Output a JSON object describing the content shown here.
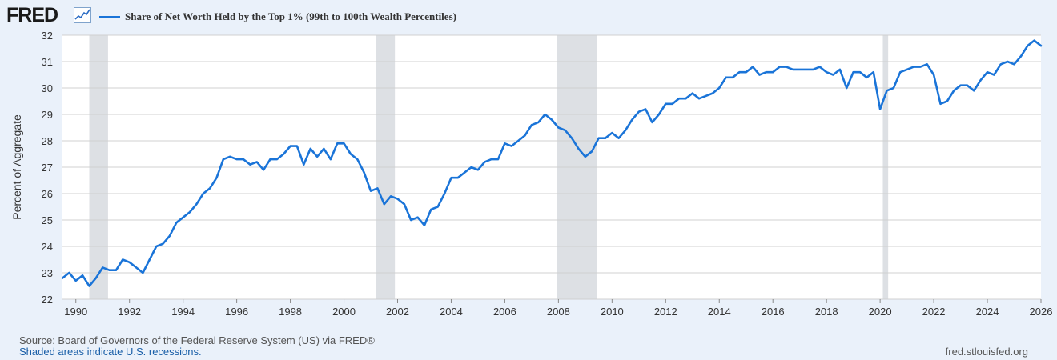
{
  "header": {
    "logo_text": "FRED",
    "logo_icon": "line-chart-icon"
  },
  "colors": {
    "series": "#1a74d8",
    "recession": "#dde0e4",
    "grid": "#d0d0d0",
    "background": "#eaf1fa",
    "plot_background": "#ffffff"
  },
  "footer": {
    "source": "Source: Board of Governors of the Federal Reserve System (US) via FRED®",
    "note": "Shaded areas indicate U.S. recessions.",
    "site": "fred.stlouisfed.org"
  },
  "chart_data": {
    "type": "line",
    "title": "",
    "ylabel": "Percent of Aggregate",
    "xlabel": "",
    "ylim": [
      22,
      32
    ],
    "xlim": [
      1989.5,
      2026.0
    ],
    "yticks": [
      22,
      23,
      24,
      25,
      26,
      27,
      28,
      29,
      30,
      31,
      32
    ],
    "xticks": [
      "1990",
      "1992",
      "1994",
      "1996",
      "1998",
      "2000",
      "2002",
      "2004",
      "2006",
      "2008",
      "2010",
      "2012",
      "2014",
      "2016",
      "2018",
      "2020",
      "2022",
      "2024",
      "2026"
    ],
    "grid": true,
    "legend_position": "top-left",
    "recessions": [
      [
        1990.5,
        1991.2
      ],
      [
        2001.2,
        2001.9
      ],
      [
        2007.95,
        2009.45
      ],
      [
        2020.1,
        2020.3
      ]
    ],
    "series": [
      {
        "name": "Share of Net Worth Held by the Top 1% (99th to 100th Wealth Percentiles)",
        "x": [
          1989.5,
          1989.75,
          1990.0,
          1990.25,
          1990.5,
          1990.75,
          1991.0,
          1991.25,
          1991.5,
          1991.75,
          1992.0,
          1992.25,
          1992.5,
          1992.75,
          1993.0,
          1993.25,
          1993.5,
          1993.75,
          1994.0,
          1994.25,
          1994.5,
          1994.75,
          1995.0,
          1995.25,
          1995.5,
          1995.75,
          1996.0,
          1996.25,
          1996.5,
          1996.75,
          1997.0,
          1997.25,
          1997.5,
          1997.75,
          1998.0,
          1998.25,
          1998.5,
          1998.75,
          1999.0,
          1999.25,
          1999.5,
          1999.75,
          2000.0,
          2000.25,
          2000.5,
          2000.75,
          2001.0,
          2001.25,
          2001.5,
          2001.75,
          2002.0,
          2002.25,
          2002.5,
          2002.75,
          2003.0,
          2003.25,
          2003.5,
          2003.75,
          2004.0,
          2004.25,
          2004.5,
          2004.75,
          2005.0,
          2005.25,
          2005.5,
          2005.75,
          2006.0,
          2006.25,
          2006.5,
          2006.75,
          2007.0,
          2007.25,
          2007.5,
          2007.75,
          2008.0,
          2008.25,
          2008.5,
          2008.75,
          2009.0,
          2009.25,
          2009.5,
          2009.75,
          2010.0,
          2010.25,
          2010.5,
          2010.75,
          2011.0,
          2011.25,
          2011.5,
          2011.75,
          2012.0,
          2012.25,
          2012.5,
          2012.75,
          2013.0,
          2013.25,
          2013.5,
          2013.75,
          2014.0,
          2014.25,
          2014.5,
          2014.75,
          2015.0,
          2015.25,
          2015.5,
          2015.75,
          2016.0,
          2016.25,
          2016.5,
          2016.75,
          2017.0,
          2017.25,
          2017.5,
          2017.75,
          2018.0,
          2018.25,
          2018.5,
          2018.75,
          2019.0,
          2019.25,
          2019.5,
          2019.75,
          2020.0,
          2020.25,
          2020.5,
          2020.75,
          2021.0,
          2021.25,
          2021.5,
          2021.75,
          2022.0,
          2022.25,
          2022.5,
          2022.75,
          2023.0,
          2023.25,
          2023.5,
          2023.75,
          2024.0,
          2024.25,
          2024.5,
          2024.75,
          2025.0,
          2025.25,
          2025.5,
          2025.75,
          2026.0
        ],
        "values": [
          22.8,
          23.0,
          22.7,
          22.9,
          22.5,
          22.8,
          23.2,
          23.1,
          23.1,
          23.5,
          23.4,
          23.2,
          23.0,
          23.5,
          24.0,
          24.1,
          24.4,
          24.9,
          25.1,
          25.3,
          25.6,
          26.0,
          26.2,
          26.6,
          27.3,
          27.4,
          27.3,
          27.3,
          27.1,
          27.2,
          26.9,
          27.3,
          27.3,
          27.5,
          27.8,
          27.8,
          27.1,
          27.7,
          27.4,
          27.7,
          27.3,
          27.9,
          27.9,
          27.5,
          27.3,
          26.8,
          26.1,
          26.2,
          25.6,
          25.9,
          25.8,
          25.6,
          25.0,
          25.1,
          24.8,
          25.4,
          25.5,
          26.0,
          26.6,
          26.6,
          26.8,
          27.0,
          26.9,
          27.2,
          27.3,
          27.3,
          27.9,
          27.8,
          28.0,
          28.2,
          28.6,
          28.7,
          29.0,
          28.8,
          28.5,
          28.4,
          28.1,
          27.7,
          27.4,
          27.6,
          28.1,
          28.1,
          28.3,
          28.1,
          28.4,
          28.8,
          29.1,
          29.2,
          28.7,
          29.0,
          29.4,
          29.4,
          29.6,
          29.6,
          29.8,
          29.6,
          29.7,
          29.8,
          30.0,
          30.4,
          30.4,
          30.6,
          30.6,
          30.8,
          30.5,
          30.6,
          30.6,
          30.8,
          30.8,
          30.7,
          30.7,
          30.7,
          30.7,
          30.8,
          30.6,
          30.5,
          30.7,
          30.0,
          30.6,
          30.6,
          30.4,
          30.6,
          29.2,
          29.9,
          30.0,
          30.6,
          30.7,
          30.8,
          30.8,
          30.9,
          30.5,
          29.4,
          29.5,
          29.9,
          30.1,
          30.1,
          29.9,
          30.3,
          30.6,
          30.5,
          30.9,
          31.0,
          30.9,
          31.2,
          31.6,
          31.8,
          31.6
        ]
      }
    ]
  }
}
